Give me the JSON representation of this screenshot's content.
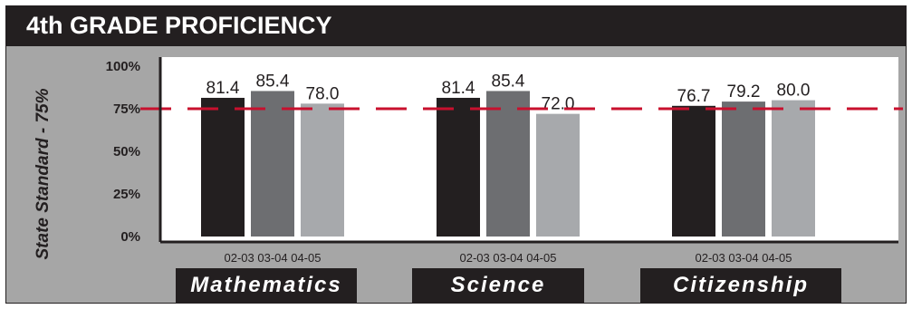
{
  "title": "4th GRADE PROFICIENCY",
  "ylabel": "State Standard - 75%",
  "colors": {
    "background": "#a6a6a6",
    "header": "#231f20",
    "series": [
      "#231f20",
      "#6d6e71",
      "#a7a9ac"
    ],
    "standard_line": "#c8102e"
  },
  "chart_data": {
    "type": "bar",
    "title": "4th GRADE PROFICIENCY",
    "ylabel": "State Standard - 75%",
    "ylim": [
      0,
      100
    ],
    "yticks": [
      "100%",
      "75%",
      "50%",
      "25%",
      "0%"
    ],
    "standard": 75,
    "grid": false,
    "groups": [
      {
        "subject": "Mathematics",
        "years": [
          "02-03",
          "03-04",
          "04-05"
        ],
        "values": [
          81.4,
          85.4,
          78.0
        ],
        "labels": [
          "81.4",
          "85.4",
          "78.0"
        ]
      },
      {
        "subject": "Science",
        "years": [
          "02-03",
          "03-04",
          "04-05"
        ],
        "values": [
          81.4,
          85.4,
          72.0
        ],
        "labels": [
          "81.4",
          "85.4",
          "72.0"
        ]
      },
      {
        "subject": "Citizenship",
        "years": [
          "02-03",
          "03-04",
          "04-05"
        ],
        "values": [
          76.7,
          79.2,
          80.0
        ],
        "labels": [
          "76.7",
          "79.2",
          "80.0"
        ]
      }
    ]
  }
}
